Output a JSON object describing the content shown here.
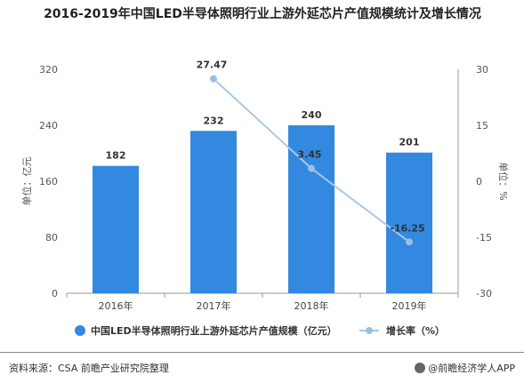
{
  "title": "2016-2019年中国LED半导体照明行业上游外延芯片产值规模统计及增长情况",
  "source": "资料来源：CSA 前瞻产业研究院整理",
  "brand": "@前瞻经济学人APP",
  "colors": {
    "bar": "#3388e0",
    "line": "#a9c8e6",
    "line_point": "#9cc0e4",
    "axis": "#999999"
  },
  "chart_data": {
    "type": "bar",
    "categories": [
      "2016年",
      "2017年",
      "2018年",
      "2019年"
    ],
    "series": [
      {
        "name": "中国LED半导体照明行业上游外延芯片产值规模（亿元）",
        "type": "bar",
        "axis": "left",
        "values": [
          182,
          232,
          240,
          201
        ]
      },
      {
        "name": "增长率（%）",
        "type": "line",
        "axis": "right",
        "x": [
          "2017年",
          "2018年",
          "2019年"
        ],
        "values": [
          27.47,
          3.45,
          -16.25
        ]
      }
    ],
    "left_axis": {
      "label": "单位：亿元",
      "ylim": [
        0,
        320
      ],
      "ticks": [
        0,
        80,
        160,
        240,
        320
      ]
    },
    "right_axis": {
      "label": "单位：%",
      "ylim": [
        -30,
        30
      ],
      "ticks": [
        -30,
        -15,
        0,
        15,
        30
      ]
    },
    "legend_position": "bottom",
    "grid": false
  }
}
